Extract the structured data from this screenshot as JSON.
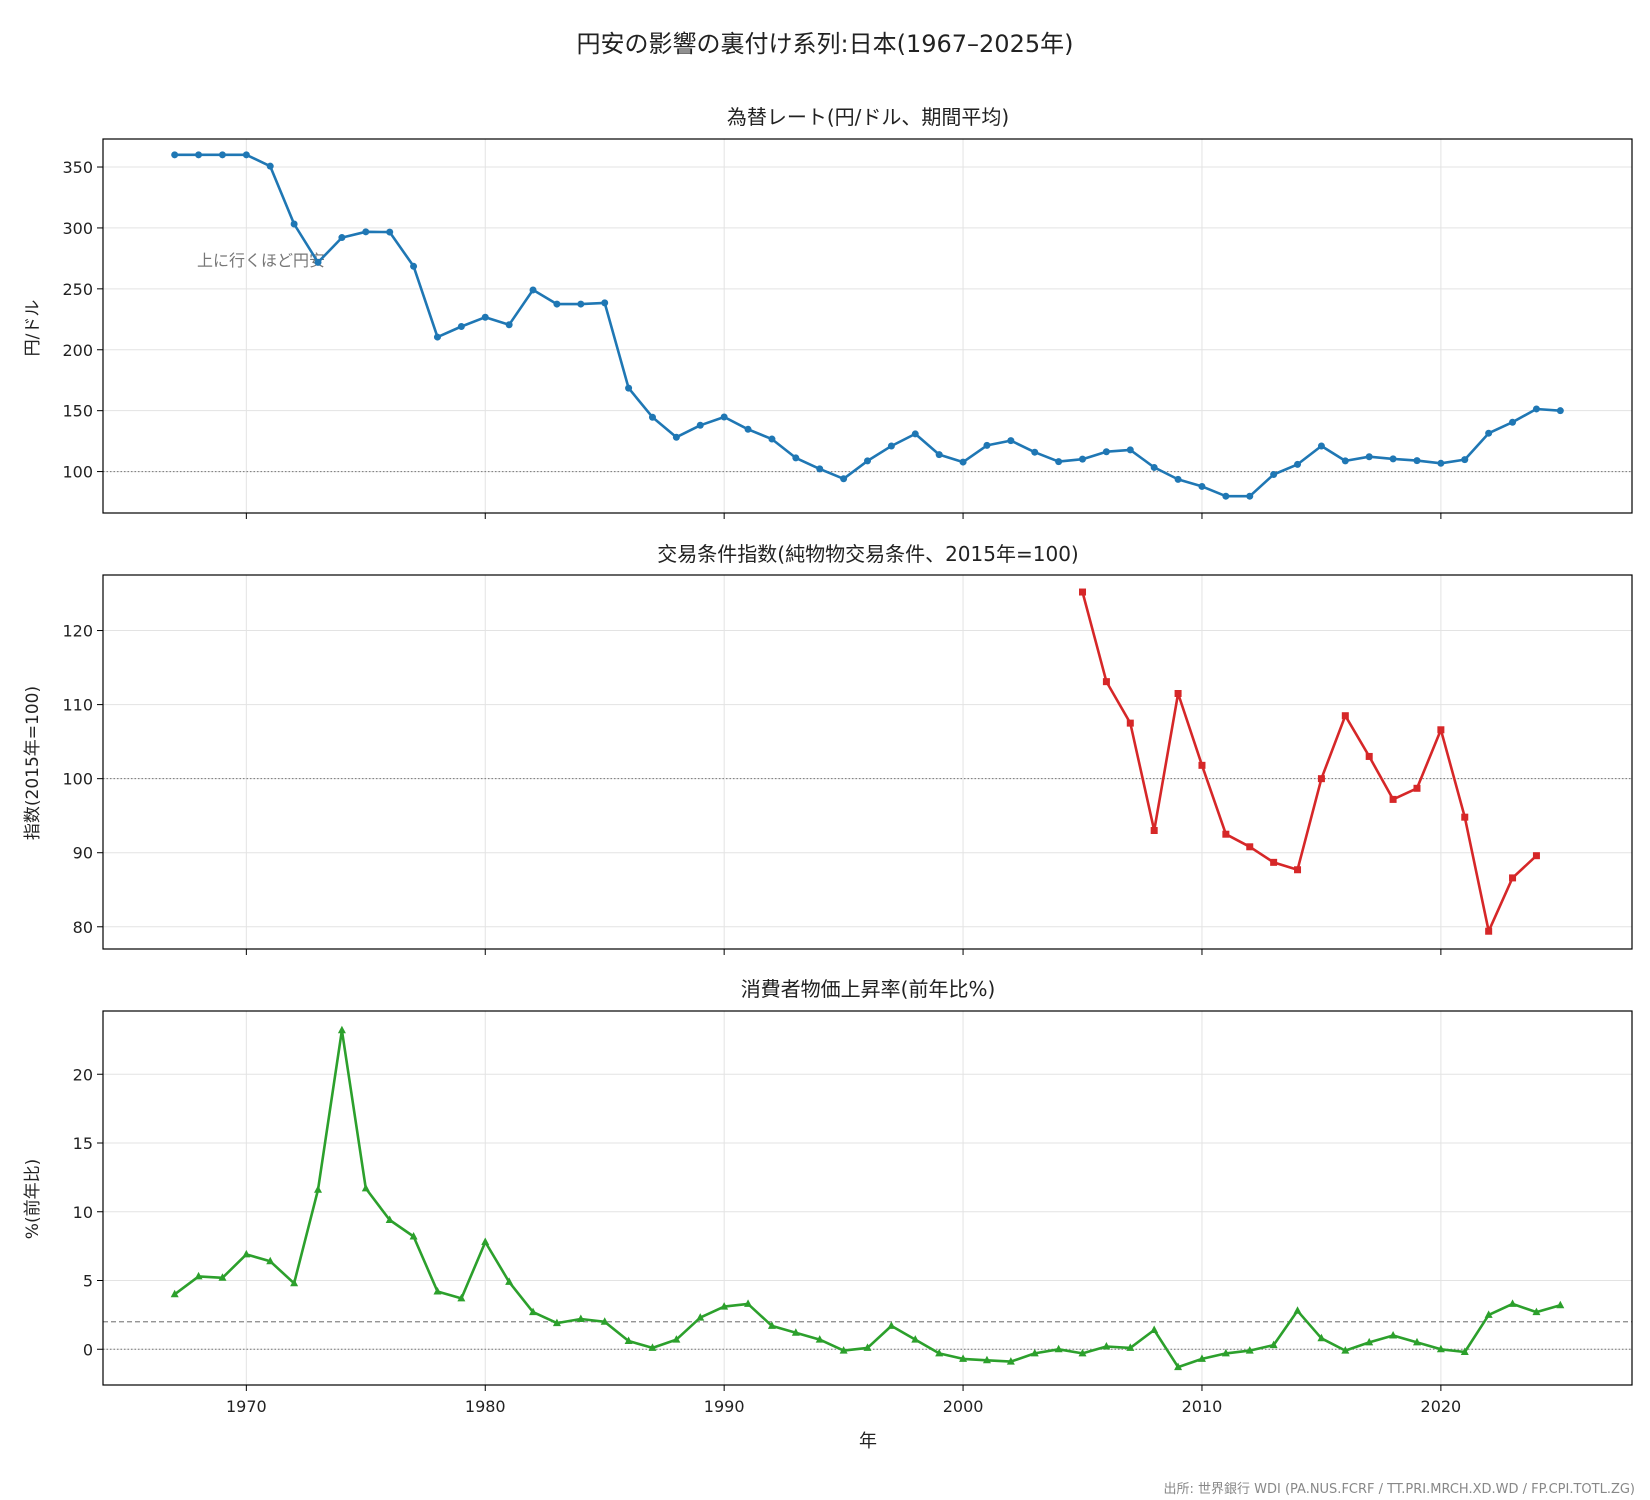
{
  "figure": {
    "title": "円安の影響の裏付け系列:日本(1967–2025年)",
    "source": "出所: 世界銀行 WDI (PA.NUS.FCRF / TT.PRI.MRCH.XD.WD / FP.CPI.TOTL.ZG)",
    "xlabel": "年",
    "xticks": [
      1970,
      1980,
      1990,
      2000,
      2010,
      2020
    ],
    "xlim": [
      1964,
      2028
    ]
  },
  "chart_data": [
    {
      "type": "line",
      "title": "為替レート(円/ドル、期間平均)",
      "ylabel": "円/ドル",
      "ylim": [
        66,
        373
      ],
      "yticks": [
        100,
        150,
        200,
        250,
        300,
        350
      ],
      "reference_line": 100,
      "annotation": "上に行くほど円安",
      "color": "#1f77b4",
      "marker": "circle",
      "x": [
        1967,
        1968,
        1969,
        1970,
        1971,
        1972,
        1973,
        1974,
        1975,
        1976,
        1977,
        1978,
        1979,
        1980,
        1981,
        1982,
        1983,
        1984,
        1985,
        1986,
        1987,
        1988,
        1989,
        1990,
        1991,
        1992,
        1993,
        1994,
        1995,
        1996,
        1997,
        1998,
        1999,
        2000,
        2001,
        2002,
        2003,
        2004,
        2005,
        2006,
        2007,
        2008,
        2009,
        2010,
        2011,
        2012,
        2013,
        2014,
        2015,
        2016,
        2017,
        2018,
        2019,
        2020,
        2021,
        2022,
        2023,
        2024,
        2025
      ],
      "y": [
        360,
        360,
        360,
        360,
        350.7,
        303.2,
        271.7,
        292.1,
        296.8,
        296.6,
        268.5,
        210.4,
        219.1,
        226.7,
        220.5,
        249.1,
        237.5,
        237.5,
        238.5,
        168.5,
        144.6,
        128.2,
        138,
        144.8,
        134.7,
        126.7,
        111.2,
        102.2,
        94.1,
        108.8,
        121,
        130.9,
        113.9,
        107.8,
        121.5,
        125.4,
        115.9,
        108.2,
        110.2,
        116.3,
        117.8,
        103.4,
        93.6,
        87.8,
        79.8,
        79.8,
        97.6,
        105.9,
        121,
        108.8,
        112.2,
        110.4,
        109,
        106.8,
        109.8,
        131.5,
        140.5,
        151.4,
        150
      ]
    },
    {
      "type": "line",
      "title": "交易条件指数(純物物交易条件、2015年=100)",
      "ylabel": "指数(2015年=100)",
      "ylim": [
        77,
        127.5
      ],
      "yticks": [
        80,
        90,
        100,
        110,
        120
      ],
      "reference_line": 100,
      "color": "#d62728",
      "marker": "square",
      "x": [
        2005,
        2006,
        2007,
        2008,
        2009,
        2010,
        2011,
        2012,
        2013,
        2014,
        2015,
        2016,
        2017,
        2018,
        2019,
        2020,
        2021,
        2022,
        2023,
        2024
      ],
      "y": [
        125.2,
        113.1,
        107.5,
        93,
        111.5,
        101.8,
        92.5,
        90.8,
        88.7,
        87.7,
        100,
        108.5,
        103,
        97.2,
        98.7,
        106.6,
        94.8,
        79.4,
        86.6,
        89.6
      ]
    },
    {
      "type": "line",
      "title": "消費者物価上昇率(前年比%)",
      "ylabel": "%(前年比)",
      "ylim": [
        -2.6,
        24.6
      ],
      "yticks": [
        0,
        5,
        10,
        15,
        20
      ],
      "reference_line": 0,
      "target_line": 2,
      "color": "#2ca02c",
      "marker": "triangle",
      "x": [
        1967,
        1968,
        1969,
        1970,
        1971,
        1972,
        1973,
        1974,
        1975,
        1976,
        1977,
        1978,
        1979,
        1980,
        1981,
        1982,
        1983,
        1984,
        1985,
        1986,
        1987,
        1988,
        1989,
        1990,
        1991,
        1992,
        1993,
        1994,
        1995,
        1996,
        1997,
        1998,
        1999,
        2000,
        2001,
        2002,
        2003,
        2004,
        2005,
        2006,
        2007,
        2008,
        2009,
        2010,
        2011,
        2012,
        2013,
        2014,
        2015,
        2016,
        2017,
        2018,
        2019,
        2020,
        2021,
        2022,
        2023,
        2024,
        2025
      ],
      "y": [
        4,
        5.3,
        5.2,
        6.9,
        6.4,
        4.8,
        11.6,
        23.2,
        11.7,
        9.4,
        8.2,
        4.2,
        3.7,
        7.8,
        4.9,
        2.7,
        1.9,
        2.2,
        2,
        0.6,
        0.1,
        0.7,
        2.3,
        3.1,
        3.3,
        1.7,
        1.2,
        0.7,
        -0.1,
        0.1,
        1.7,
        0.7,
        -0.3,
        -0.7,
        -0.8,
        -0.9,
        -0.3,
        0,
        -0.3,
        0.2,
        0.1,
        1.4,
        -1.3,
        -0.7,
        -0.3,
        -0.1,
        0.3,
        2.8,
        0.8,
        -0.1,
        0.5,
        1,
        0.5,
        0,
        -0.2,
        2.5,
        3.3,
        2.7,
        3.2
      ]
    }
  ]
}
